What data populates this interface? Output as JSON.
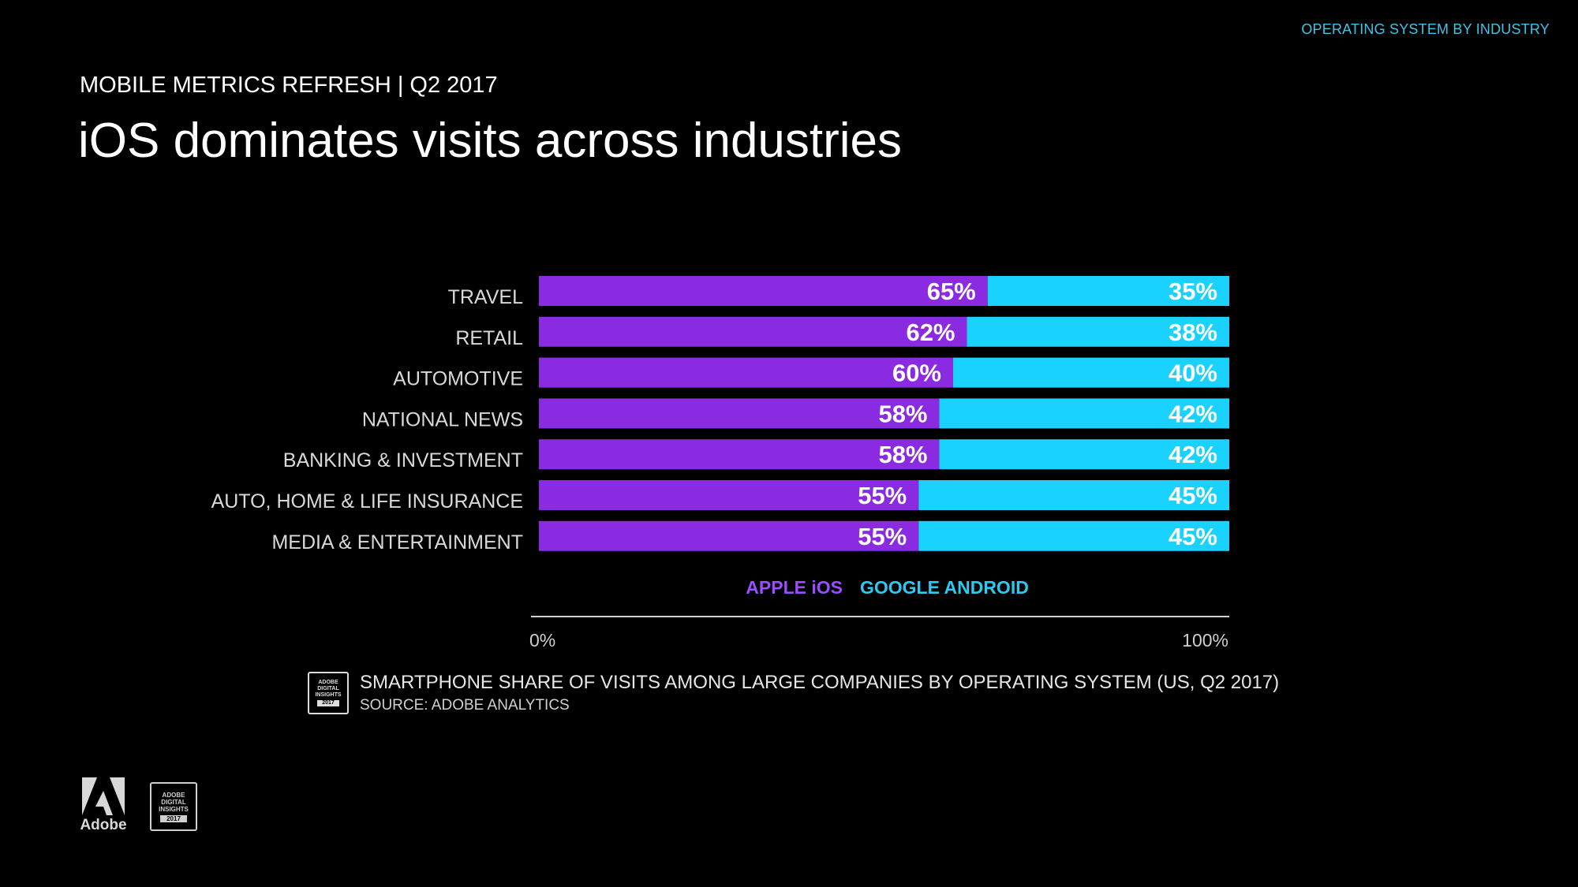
{
  "header": {
    "top_tag": "OPERATING SYSTEM BY INDUSTRY",
    "subtitle": "MOBILE METRICS REFRESH | Q2 2017",
    "title": "iOS dominates visits across industries"
  },
  "colors": {
    "ios": "#8a2be2",
    "android": "#19d2ff",
    "ios_legend": "#9b4dff",
    "android_legend": "#2ec8f0"
  },
  "chart_data": {
    "type": "bar",
    "orientation": "horizontal",
    "stacked": true,
    "categories": [
      "TRAVEL",
      "RETAIL",
      "AUTOMOTIVE",
      "NATIONAL NEWS",
      "BANKING & INVESTMENT",
      "AUTO, HOME & LIFE INSURANCE",
      "MEDIA & ENTERTAINMENT"
    ],
    "series": [
      {
        "name": "APPLE iOS",
        "values": [
          65,
          62,
          60,
          58,
          58,
          55,
          55
        ],
        "labels": [
          "65%",
          "62%",
          "60%",
          "58%",
          "58%",
          "55%",
          "55%"
        ]
      },
      {
        "name": "GOOGLE ANDROID",
        "values": [
          35,
          38,
          40,
          42,
          42,
          45,
          45
        ],
        "labels": [
          "35%",
          "38%",
          "40%",
          "42%",
          "42%",
          "45%",
          "45%"
        ]
      }
    ],
    "xlim": [
      0,
      100
    ],
    "x_tick_labels": [
      "0%",
      "100%"
    ],
    "legend": "center, below bars"
  },
  "caption": {
    "line1": "SMARTPHONE SHARE OF VISITS AMONG LARGE COMPANIES BY OPERATING SYSTEM (US, Q2 2017)",
    "line2": "SOURCE: ADOBE ANALYTICS"
  },
  "badge": {
    "line1": "ADOBE",
    "line2": "DIGITAL",
    "line3": "INSIGHTS",
    "year": "2017"
  },
  "footer": {
    "adobe_word": "Adobe"
  }
}
